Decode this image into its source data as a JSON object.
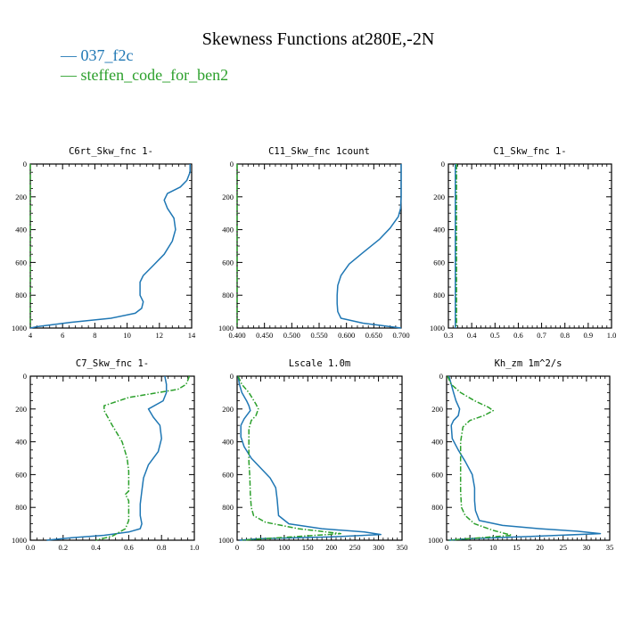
{
  "figure": {
    "title": "Skewness Functions at280E,-2N",
    "legend": [
      {
        "label": "037_f2c",
        "color": "#1f77b4"
      },
      {
        "label": "steffen_code_for_ben2",
        "color": "#2ca02c"
      }
    ]
  },
  "chart_data": [
    {
      "type": "line",
      "title": "C6rt_Skw_fnc   1-",
      "xlim": [
        4,
        14
      ],
      "ylim": [
        0,
        1000
      ],
      "y_inverted": true,
      "xticks": [
        "4",
        "6",
        "8",
        "10",
        "12",
        "14"
      ],
      "yticks": [
        "0",
        "200",
        "400",
        "600",
        "800",
        "1000"
      ],
      "series": [
        {
          "color": "#1f77b4",
          "style": "solid",
          "x": [
            13.9,
            13.9,
            13.7,
            13.3,
            12.5,
            12.3,
            12.5,
            12.9,
            13.0,
            12.8,
            12.3,
            11.6,
            11.0,
            10.8,
            10.8,
            10.8,
            11.0,
            10.9,
            10.5,
            9.0,
            6.5,
            4.5,
            4.0
          ],
          "y": [
            0,
            50,
            100,
            140,
            180,
            220,
            270,
            330,
            400,
            470,
            550,
            620,
            680,
            720,
            760,
            800,
            840,
            880,
            910,
            940,
            965,
            990,
            1000
          ]
        },
        {
          "color": "#2ca02c",
          "style": "dashdot",
          "x": [
            4.0,
            4.0
          ],
          "y": [
            0,
            1000
          ]
        }
      ]
    },
    {
      "type": "line",
      "title": "C11_Skw_fnc   1count",
      "xlim": [
        0.4,
        0.7
      ],
      "ylim": [
        0,
        1000
      ],
      "y_inverted": true,
      "xticks": [
        "0.400",
        "0.450",
        "0.500",
        "0.550",
        "0.600",
        "0.650",
        "0.700"
      ],
      "yticks": [
        "0",
        "200",
        "400",
        "600",
        "800",
        "1000"
      ],
      "series": [
        {
          "color": "#1f77b4",
          "style": "solid",
          "x": [
            0.7,
            0.7,
            0.7,
            0.699,
            0.695,
            0.68,
            0.66,
            0.63,
            0.605,
            0.59,
            0.584,
            0.583,
            0.583,
            0.584,
            0.59,
            0.63,
            0.7
          ],
          "y": [
            0,
            100,
            200,
            270,
            320,
            390,
            460,
            540,
            610,
            680,
            740,
            800,
            850,
            900,
            940,
            970,
            1000
          ]
        },
        {
          "color": "#2ca02c",
          "style": "dashdot",
          "x": [
            0.4,
            0.4
          ],
          "y": [
            0,
            1000
          ]
        }
      ]
    },
    {
      "type": "line",
      "title": "C1_Skw_fnc   1-",
      "xlim": [
        0.3,
        1.0
      ],
      "ylim": [
        0,
        1000
      ],
      "y_inverted": true,
      "xticks": [
        "0.3",
        "0.4",
        "0.5",
        "0.6",
        "0.7",
        "0.8",
        "0.9",
        "1.0"
      ],
      "yticks": [
        "0",
        "200",
        "400",
        "600",
        "800",
        "1000"
      ],
      "series": [
        {
          "color": "#1f77b4",
          "style": "solid",
          "x": [
            0.33,
            0.33
          ],
          "y": [
            0,
            1000
          ]
        },
        {
          "color": "#2ca02c",
          "style": "dashdot",
          "x": [
            0.335,
            0.335
          ],
          "y": [
            0,
            1000
          ]
        }
      ]
    },
    {
      "type": "line",
      "title": "C7_Skw_fnc   1-",
      "xlim": [
        0.0,
        1.0
      ],
      "ylim": [
        0,
        1000
      ],
      "y_inverted": true,
      "xticks": [
        "0.0",
        "0.2",
        "0.4",
        "0.6",
        "0.8",
        "1.0"
      ],
      "yticks": [
        "0",
        "200",
        "400",
        "600",
        "800",
        "1000"
      ],
      "series": [
        {
          "color": "#1f77b4",
          "style": "solid",
          "x": [
            0.82,
            0.83,
            0.83,
            0.81,
            0.72,
            0.75,
            0.79,
            0.8,
            0.78,
            0.72,
            0.69,
            0.68,
            0.67,
            0.67,
            0.68,
            0.67,
            0.6,
            0.45,
            0.25,
            0.1
          ],
          "y": [
            0,
            50,
            100,
            150,
            200,
            250,
            300,
            380,
            460,
            540,
            620,
            700,
            780,
            850,
            900,
            930,
            950,
            970,
            985,
            1000
          ]
        },
        {
          "color": "#2ca02c",
          "style": "dashdot",
          "x": [
            0.97,
            0.95,
            0.9,
            0.6,
            0.45,
            0.45,
            0.5,
            0.56,
            0.59,
            0.6,
            0.6,
            0.6,
            0.58,
            0.6,
            0.6,
            0.6,
            0.58,
            0.5,
            0.4
          ],
          "y": [
            0,
            50,
            80,
            130,
            180,
            210,
            300,
            400,
            500,
            580,
            640,
            700,
            720,
            760,
            820,
            880,
            930,
            975,
            1000
          ]
        }
      ]
    },
    {
      "type": "line",
      "title": "Lscale   1.0m",
      "xlim": [
        0,
        350
      ],
      "ylim": [
        0,
        1000
      ],
      "y_inverted": true,
      "xticks": [
        "0",
        "50",
        "100",
        "150",
        "200",
        "250",
        "300",
        "350"
      ],
      "yticks": [
        "0",
        "200",
        "400",
        "600",
        "800",
        "1000"
      ],
      "series": [
        {
          "color": "#1f77b4",
          "style": "solid",
          "x": [
            2,
            5,
            10,
            20,
            25,
            28,
            15,
            8,
            8,
            15,
            30,
            50,
            70,
            82,
            85,
            88,
            110,
            180,
            270,
            305,
            200,
            50,
            5
          ],
          "y": [
            0,
            50,
            100,
            150,
            180,
            210,
            260,
            300,
            370,
            430,
            500,
            560,
            620,
            680,
            750,
            850,
            900,
            930,
            950,
            965,
            980,
            990,
            1000
          ]
        },
        {
          "color": "#2ca02c",
          "style": "dashdot",
          "x": [
            2,
            10,
            25,
            40,
            45,
            40,
            30,
            25,
            25,
            25,
            27,
            28,
            30,
            35,
            60,
            130,
            220,
            10
          ],
          "y": [
            0,
            50,
            100,
            170,
            200,
            240,
            270,
            320,
            420,
            520,
            620,
            720,
            800,
            850,
            890,
            930,
            960,
            1000
          ]
        }
      ]
    },
    {
      "type": "line",
      "title": "Kh_zm   1m^2/s",
      "xlim": [
        0,
        35
      ],
      "ylim": [
        0,
        1000
      ],
      "y_inverted": true,
      "xticks": [
        "0",
        "5",
        "10",
        "15",
        "20",
        "25",
        "30",
        "35"
      ],
      "yticks": [
        "0",
        "200",
        "400",
        "600",
        "800",
        "1000"
      ],
      "series": [
        {
          "color": "#1f77b4",
          "style": "solid",
          "x": [
            0.5,
            1,
            1.5,
            2,
            2.8,
            2.5,
            1.5,
            1,
            1.2,
            2.5,
            4,
            5.5,
            6,
            6,
            6.2,
            7,
            12,
            20,
            28,
            33,
            20,
            5,
            0.5
          ],
          "y": [
            0,
            50,
            100,
            150,
            200,
            240,
            270,
            300,
            380,
            450,
            520,
            600,
            680,
            760,
            820,
            880,
            910,
            930,
            945,
            960,
            975,
            990,
            1000
          ]
        },
        {
          "color": "#2ca02c",
          "style": "dashdot",
          "x": [
            0.2,
            1,
            3,
            6,
            9,
            10,
            8,
            5,
            3.5,
            3,
            3,
            3,
            3,
            3.2,
            4,
            6,
            10,
            14,
            0.5
          ],
          "y": [
            0,
            50,
            100,
            150,
            190,
            210,
            240,
            270,
            310,
            400,
            500,
            600,
            700,
            800,
            850,
            900,
            940,
            970,
            1000
          ]
        }
      ]
    }
  ]
}
